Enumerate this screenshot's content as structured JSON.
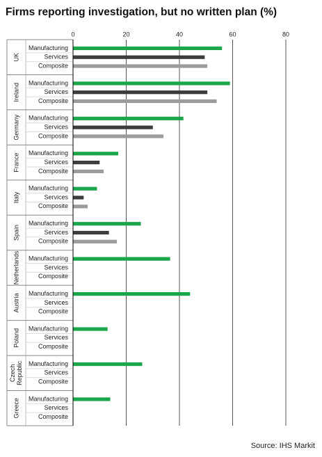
{
  "chart_data": {
    "type": "grouped-hbar",
    "title": "Firms reporting investigation, but no written plan (%)",
    "source": "Source: IHS Markit",
    "categories": [
      "UK",
      "Ireland",
      "Germany",
      "France",
      "Italy",
      "Spain",
      "Netherlands",
      "Austria",
      "Poland",
      "Czech Republic",
      "Greece"
    ],
    "series": [
      {
        "name": "Manufacturing",
        "color": "#1ba64b",
        "values": [
          56,
          59,
          41.5,
          17,
          9,
          25.5,
          36.5,
          44,
          13,
          26,
          14
        ]
      },
      {
        "name": "Services",
        "color": "#3d3d3d",
        "values": [
          49.5,
          50.5,
          30,
          10,
          4,
          13.5,
          null,
          null,
          null,
          null,
          null
        ]
      },
      {
        "name": "Composite",
        "color": "#9c9c9c",
        "values": [
          50.5,
          54,
          34,
          11.5,
          5.5,
          16.5,
          null,
          null,
          null,
          null,
          null
        ]
      }
    ],
    "xlim": [
      0,
      80
    ],
    "xticks": [
      0,
      20,
      40,
      60,
      80
    ],
    "grid": true
  }
}
